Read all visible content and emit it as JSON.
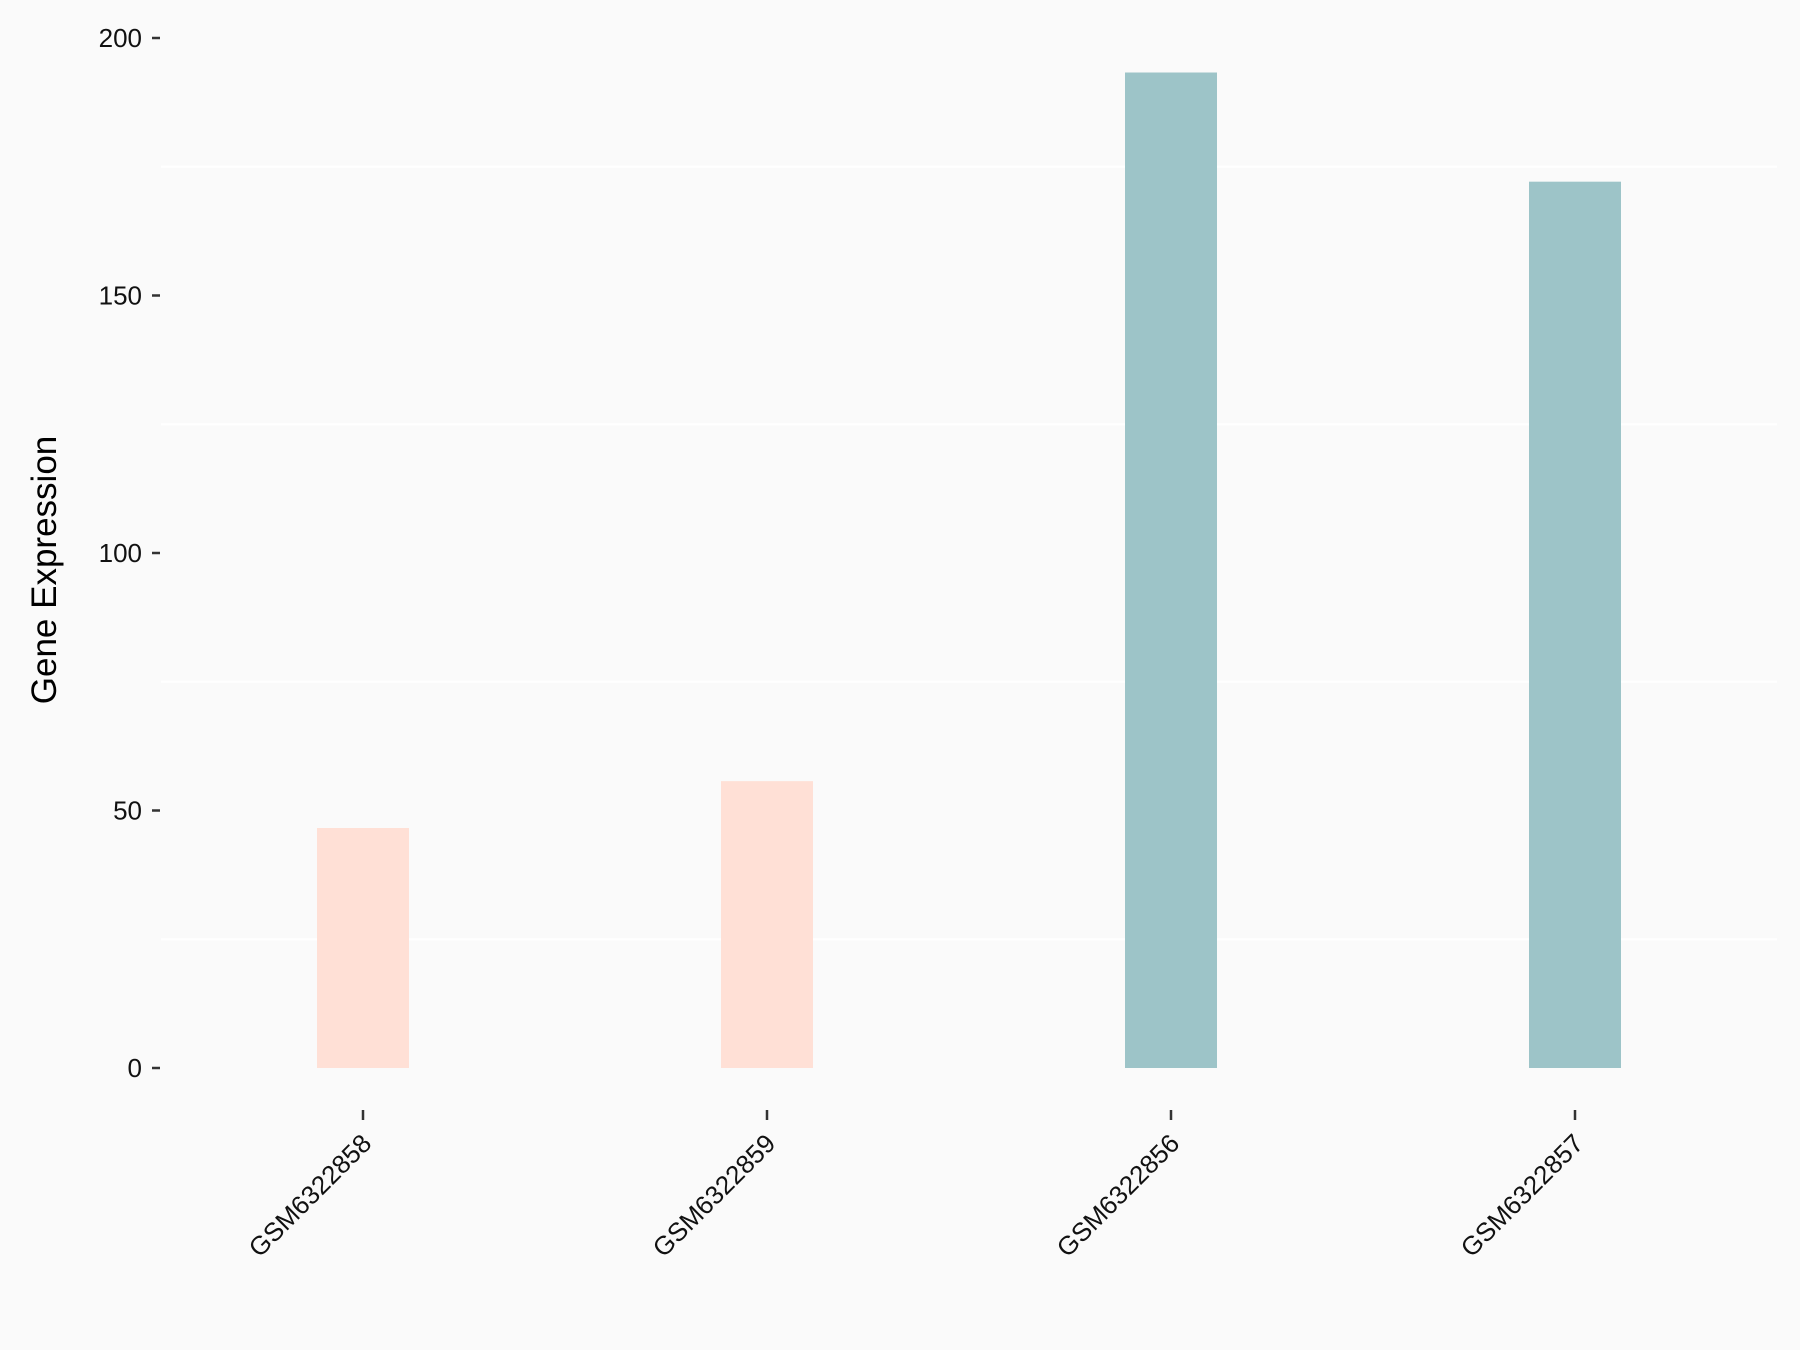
{
  "chart_data": {
    "type": "bar",
    "title": "",
    "xlabel": "",
    "ylabel": "Gene Expression",
    "categories": [
      "GSM6322858",
      "GSM6322859",
      "GSM6322856",
      "GSM6322857"
    ],
    "values": [
      46.6,
      55.7,
      193.3,
      172.1
    ],
    "bar_colors": [
      "#FFE0D6",
      "#FFE0D6",
      "#9DC4C8",
      "#9DC4C8"
    ],
    "ylim": [
      0,
      200
    ],
    "yticks": [
      0,
      50,
      100,
      150,
      200
    ],
    "grid": "horizontal minor lines",
    "legend": "none",
    "background": "#FAFAFA"
  }
}
